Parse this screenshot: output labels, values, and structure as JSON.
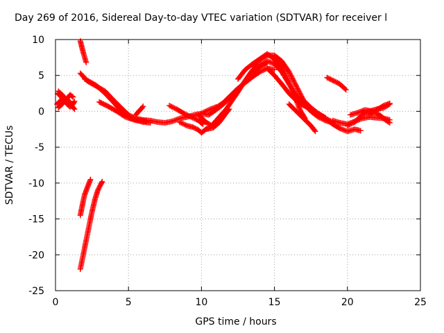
{
  "chart_data": {
    "type": "scatter",
    "title": "Day 269 of 2016, Sidereal Day-to-day VTEC variation (SDTVAR) for receiver l",
    "xlabel": "GPS time / hours",
    "ylabel": "SDTVAR / TECUs",
    "xlim": [
      0,
      25
    ],
    "ylim": [
      -25,
      10
    ],
    "xticks": [
      0,
      5,
      10,
      15,
      20,
      25
    ],
    "yticks": [
      -25,
      -20,
      -15,
      -10,
      -5,
      0,
      5,
      10
    ],
    "grid": true,
    "marker": "plus",
    "color": "#ff0000",
    "series": [
      {
        "points": [
          [
            0.15,
            2.5
          ],
          [
            0.4,
            2.0
          ],
          [
            0.6,
            1.5
          ],
          [
            0.8,
            1.0
          ],
          [
            1.0,
            0.6
          ],
          [
            1.2,
            1.0
          ],
          [
            1.3,
            1.4
          ]
        ]
      },
      {
        "points": [
          [
            0.1,
            1.0
          ],
          [
            0.3,
            1.4
          ],
          [
            0.5,
            1.8
          ],
          [
            0.8,
            1.6
          ],
          [
            1.0,
            1.3
          ]
        ]
      },
      {
        "points": [
          [
            0.2,
            0.5
          ],
          [
            0.4,
            0.9
          ],
          [
            0.6,
            1.3
          ],
          [
            0.8,
            1.8
          ],
          [
            1.0,
            2.3
          ],
          [
            1.2,
            2.0
          ]
        ]
      },
      {
        "points": [
          [
            0.2,
            2.8
          ],
          [
            0.4,
            2.4
          ],
          [
            0.6,
            2.0
          ],
          [
            0.8,
            1.4
          ],
          [
            1.1,
            0.8
          ],
          [
            1.3,
            0.3
          ]
        ]
      },
      {
        "points": [
          [
            1.7,
            9.8
          ],
          [
            1.8,
            9.0
          ],
          [
            1.9,
            8.2
          ],
          [
            2.0,
            7.5
          ],
          [
            2.1,
            6.8
          ]
        ]
      },
      {
        "points": [
          [
            1.7,
            -14.5
          ],
          [
            1.8,
            -13.5
          ],
          [
            1.9,
            -12.5
          ],
          [
            2.0,
            -11.6
          ],
          [
            2.15,
            -10.8
          ],
          [
            2.3,
            -10.0
          ],
          [
            2.4,
            -9.5
          ]
        ]
      },
      {
        "points": [
          [
            1.7,
            -22.0
          ],
          [
            1.9,
            -20.0
          ],
          [
            2.1,
            -18.0
          ],
          [
            2.3,
            -16.0
          ],
          [
            2.5,
            -14.0
          ],
          [
            2.7,
            -12.3
          ],
          [
            2.9,
            -11.0
          ],
          [
            3.1,
            -10.2
          ],
          [
            3.2,
            -9.8
          ]
        ]
      },
      {
        "points": [
          [
            1.7,
            5.3
          ],
          [
            2.2,
            4.2
          ],
          [
            2.8,
            3.5
          ],
          [
            3.4,
            2.8
          ],
          [
            4.0,
            1.5
          ],
          [
            4.6,
            0.3
          ],
          [
            5.0,
            -0.5
          ],
          [
            5.5,
            -1.0
          ],
          [
            6.0,
            -1.2
          ],
          [
            6.5,
            -1.3
          ]
        ]
      },
      {
        "points": [
          [
            2.0,
            4.5
          ],
          [
            2.8,
            3.6
          ],
          [
            3.4,
            2.5
          ],
          [
            4.0,
            1.2
          ],
          [
            4.6,
            -0.2
          ],
          [
            5.1,
            -0.9
          ],
          [
            5.6,
            -1.2
          ],
          [
            6.2,
            -1.4
          ]
        ]
      },
      {
        "points": [
          [
            3.0,
            1.3
          ],
          [
            3.6,
            0.7
          ],
          [
            4.2,
            0.0
          ],
          [
            4.8,
            -0.8
          ],
          [
            5.4,
            -1.2
          ],
          [
            6.0,
            -1.5
          ],
          [
            6.5,
            -1.6
          ]
        ]
      },
      {
        "points": [
          [
            5.5,
            -0.5
          ],
          [
            5.7,
            0.0
          ],
          [
            5.9,
            0.4
          ],
          [
            6.0,
            0.7
          ]
        ]
      },
      {
        "points": [
          [
            6.5,
            -1.3
          ],
          [
            7.0,
            -1.5
          ],
          [
            7.5,
            -1.6
          ],
          [
            8.0,
            -1.4
          ],
          [
            8.5,
            -1.0
          ],
          [
            9.0,
            -0.8
          ],
          [
            9.5,
            -0.5
          ],
          [
            10.0,
            -0.3
          ],
          [
            10.5,
            0.2
          ],
          [
            11.0,
            0.6
          ]
        ]
      },
      {
        "points": [
          [
            7.8,
            0.8
          ],
          [
            8.3,
            0.3
          ],
          [
            8.8,
            -0.3
          ],
          [
            9.3,
            -0.8
          ],
          [
            9.8,
            -1.3
          ],
          [
            10.1,
            -1.8
          ]
        ]
      },
      {
        "points": [
          [
            8.5,
            -1.5
          ],
          [
            9.0,
            -2.0
          ],
          [
            9.4,
            -2.2
          ],
          [
            9.8,
            -2.6
          ],
          [
            10.0,
            -3.0
          ],
          [
            10.3,
            -2.5
          ],
          [
            10.6,
            -2.2
          ]
        ]
      },
      {
        "points": [
          [
            10.3,
            -2.5
          ],
          [
            10.8,
            -2.3
          ],
          [
            11.2,
            -1.6
          ],
          [
            11.6,
            -0.5
          ],
          [
            11.9,
            0.3
          ]
        ]
      },
      {
        "points": [
          [
            9.8,
            -0.5
          ],
          [
            10.3,
            -1.5
          ],
          [
            10.7,
            -2.0
          ],
          [
            11.0,
            -1.3
          ],
          [
            11.3,
            -0.6
          ],
          [
            11.7,
            0.3
          ],
          [
            12.1,
            1.5
          ],
          [
            12.6,
            3.0
          ],
          [
            13.0,
            4.3
          ],
          [
            13.4,
            5.5
          ],
          [
            13.8,
            6.4
          ]
        ]
      },
      {
        "points": [
          [
            10.0,
            -0.3
          ],
          [
            10.5,
            -0.5
          ],
          [
            11.0,
            0.2
          ],
          [
            11.5,
            1.0
          ],
          [
            12.0,
            2.0
          ],
          [
            12.5,
            3.0
          ],
          [
            13.0,
            4.2
          ],
          [
            13.5,
            5.3
          ],
          [
            14.0,
            6.2
          ],
          [
            14.5,
            6.8
          ]
        ]
      },
      {
        "points": [
          [
            11.0,
            0.5
          ],
          [
            11.5,
            1.2
          ],
          [
            12.0,
            2.2
          ],
          [
            12.5,
            3.2
          ],
          [
            13.0,
            4.0
          ],
          [
            13.5,
            4.8
          ],
          [
            14.0,
            5.5
          ],
          [
            14.5,
            6.0
          ],
          [
            15.0,
            5.8
          ]
        ]
      },
      {
        "points": [
          [
            12.5,
            4.5
          ],
          [
            13.0,
            5.8
          ],
          [
            13.5,
            6.6
          ],
          [
            14.0,
            7.3
          ],
          [
            14.5,
            8.0
          ],
          [
            15.0,
            7.3
          ],
          [
            15.3,
            6.0
          ]
        ]
      },
      {
        "points": [
          [
            13.5,
            6.3
          ],
          [
            14.0,
            7.2
          ],
          [
            14.5,
            7.8
          ],
          [
            15.0,
            7.8
          ],
          [
            15.5,
            7.0
          ],
          [
            16.0,
            5.5
          ],
          [
            16.5,
            3.5
          ],
          [
            17.0,
            1.5
          ],
          [
            17.5,
            0.5
          ],
          [
            18.0,
            -0.3
          ],
          [
            18.5,
            -1.0
          ],
          [
            19.0,
            -1.5
          ]
        ]
      },
      {
        "points": [
          [
            14.0,
            6.5
          ],
          [
            14.5,
            7.0
          ],
          [
            15.0,
            6.6
          ],
          [
            15.5,
            5.5
          ],
          [
            16.0,
            3.8
          ],
          [
            16.5,
            2.2
          ],
          [
            17.0,
            1.0
          ],
          [
            17.5,
            0.0
          ],
          [
            18.0,
            -0.8
          ],
          [
            18.5,
            -1.3
          ],
          [
            19.0,
            -1.6
          ]
        ]
      },
      {
        "points": [
          [
            14.5,
            6.0
          ],
          [
            15.0,
            5.0
          ],
          [
            15.5,
            3.8
          ],
          [
            16.0,
            2.5
          ],
          [
            16.5,
            1.5
          ],
          [
            17.0,
            0.8
          ],
          [
            17.5,
            0.3
          ],
          [
            18.0,
            -0.3
          ],
          [
            18.5,
            -0.9
          ]
        ]
      },
      {
        "points": [
          [
            15.0,
            7.5
          ],
          [
            15.5,
            6.2
          ],
          [
            16.0,
            4.0
          ],
          [
            16.5,
            1.5
          ],
          [
            16.8,
            0.0
          ],
          [
            17.1,
            -1.0
          ]
        ]
      },
      {
        "points": [
          [
            16.0,
            1.0
          ],
          [
            16.5,
            0.0
          ],
          [
            17.0,
            -1.0
          ],
          [
            17.5,
            -2.0
          ],
          [
            17.8,
            -2.8
          ]
        ]
      },
      {
        "points": [
          [
            18.5,
            -1.0
          ],
          [
            19.0,
            -1.8
          ],
          [
            19.5,
            -2.4
          ],
          [
            20.0,
            -2.8
          ],
          [
            20.5,
            -2.5
          ],
          [
            20.9,
            -2.7
          ]
        ]
      },
      {
        "points": [
          [
            18.6,
            4.7
          ],
          [
            19.0,
            4.3
          ],
          [
            19.4,
            3.9
          ],
          [
            19.7,
            3.4
          ],
          [
            19.9,
            3.0
          ]
        ]
      },
      {
        "points": [
          [
            19.0,
            -1.3
          ],
          [
            19.5,
            -1.6
          ],
          [
            20.0,
            -1.8
          ],
          [
            20.5,
            -1.4
          ],
          [
            21.0,
            -1.0
          ],
          [
            21.5,
            -0.8
          ],
          [
            22.0,
            -0.9
          ],
          [
            22.5,
            -1.0
          ],
          [
            22.9,
            -1.2
          ]
        ]
      },
      {
        "points": [
          [
            20.0,
            -2.0
          ],
          [
            20.5,
            -1.5
          ],
          [
            21.0,
            -0.5
          ],
          [
            21.5,
            0.0
          ],
          [
            22.0,
            0.3
          ],
          [
            22.5,
            0.5
          ],
          [
            22.9,
            1.0
          ]
        ]
      },
      {
        "points": [
          [
            20.2,
            -0.5
          ],
          [
            20.7,
            -0.2
          ],
          [
            21.2,
            0.2
          ],
          [
            21.7,
            0.0
          ],
          [
            22.2,
            -0.5
          ],
          [
            22.6,
            -1.2
          ],
          [
            22.9,
            -1.6
          ]
        ]
      },
      {
        "points": [
          [
            21.5,
            -0.5
          ],
          [
            22.0,
            0.2
          ],
          [
            22.5,
            0.8
          ],
          [
            22.9,
            1.1
          ]
        ]
      }
    ]
  }
}
